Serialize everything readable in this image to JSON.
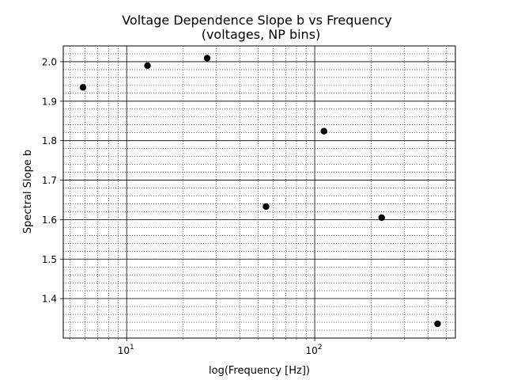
{
  "chart_data": {
    "type": "scatter",
    "title": "Voltage Dependence Slope b vs Frequency",
    "subtitle": "(voltages, NP bins)",
    "xlabel": "log(Frequency [Hz])",
    "ylabel": "Spectral Slope b",
    "x_scale": "log",
    "xlim": [
      4.6,
      560
    ],
    "ylim": [
      1.3,
      2.04
    ],
    "x_major_ticks": [
      10,
      100
    ],
    "x_tick_labels": [
      "10",
      "10"
    ],
    "x_tick_label_exponents": [
      "1",
      "2"
    ],
    "y_ticks": [
      1.4,
      1.5,
      1.6,
      1.7,
      1.8,
      1.9,
      2.0
    ],
    "y_tick_labels": [
      "1.4",
      "1.5",
      "1.6",
      "1.7",
      "1.8",
      "1.9",
      "2.0"
    ],
    "grid": true,
    "marker_color": "#000000",
    "series": [
      {
        "x": [
          5.86,
          12.9,
          26.8,
          55.1,
          112,
          227,
          450
        ],
        "y": [
          1.935,
          1.99,
          2.009,
          1.633,
          1.824,
          1.605,
          1.336
        ]
      }
    ]
  }
}
